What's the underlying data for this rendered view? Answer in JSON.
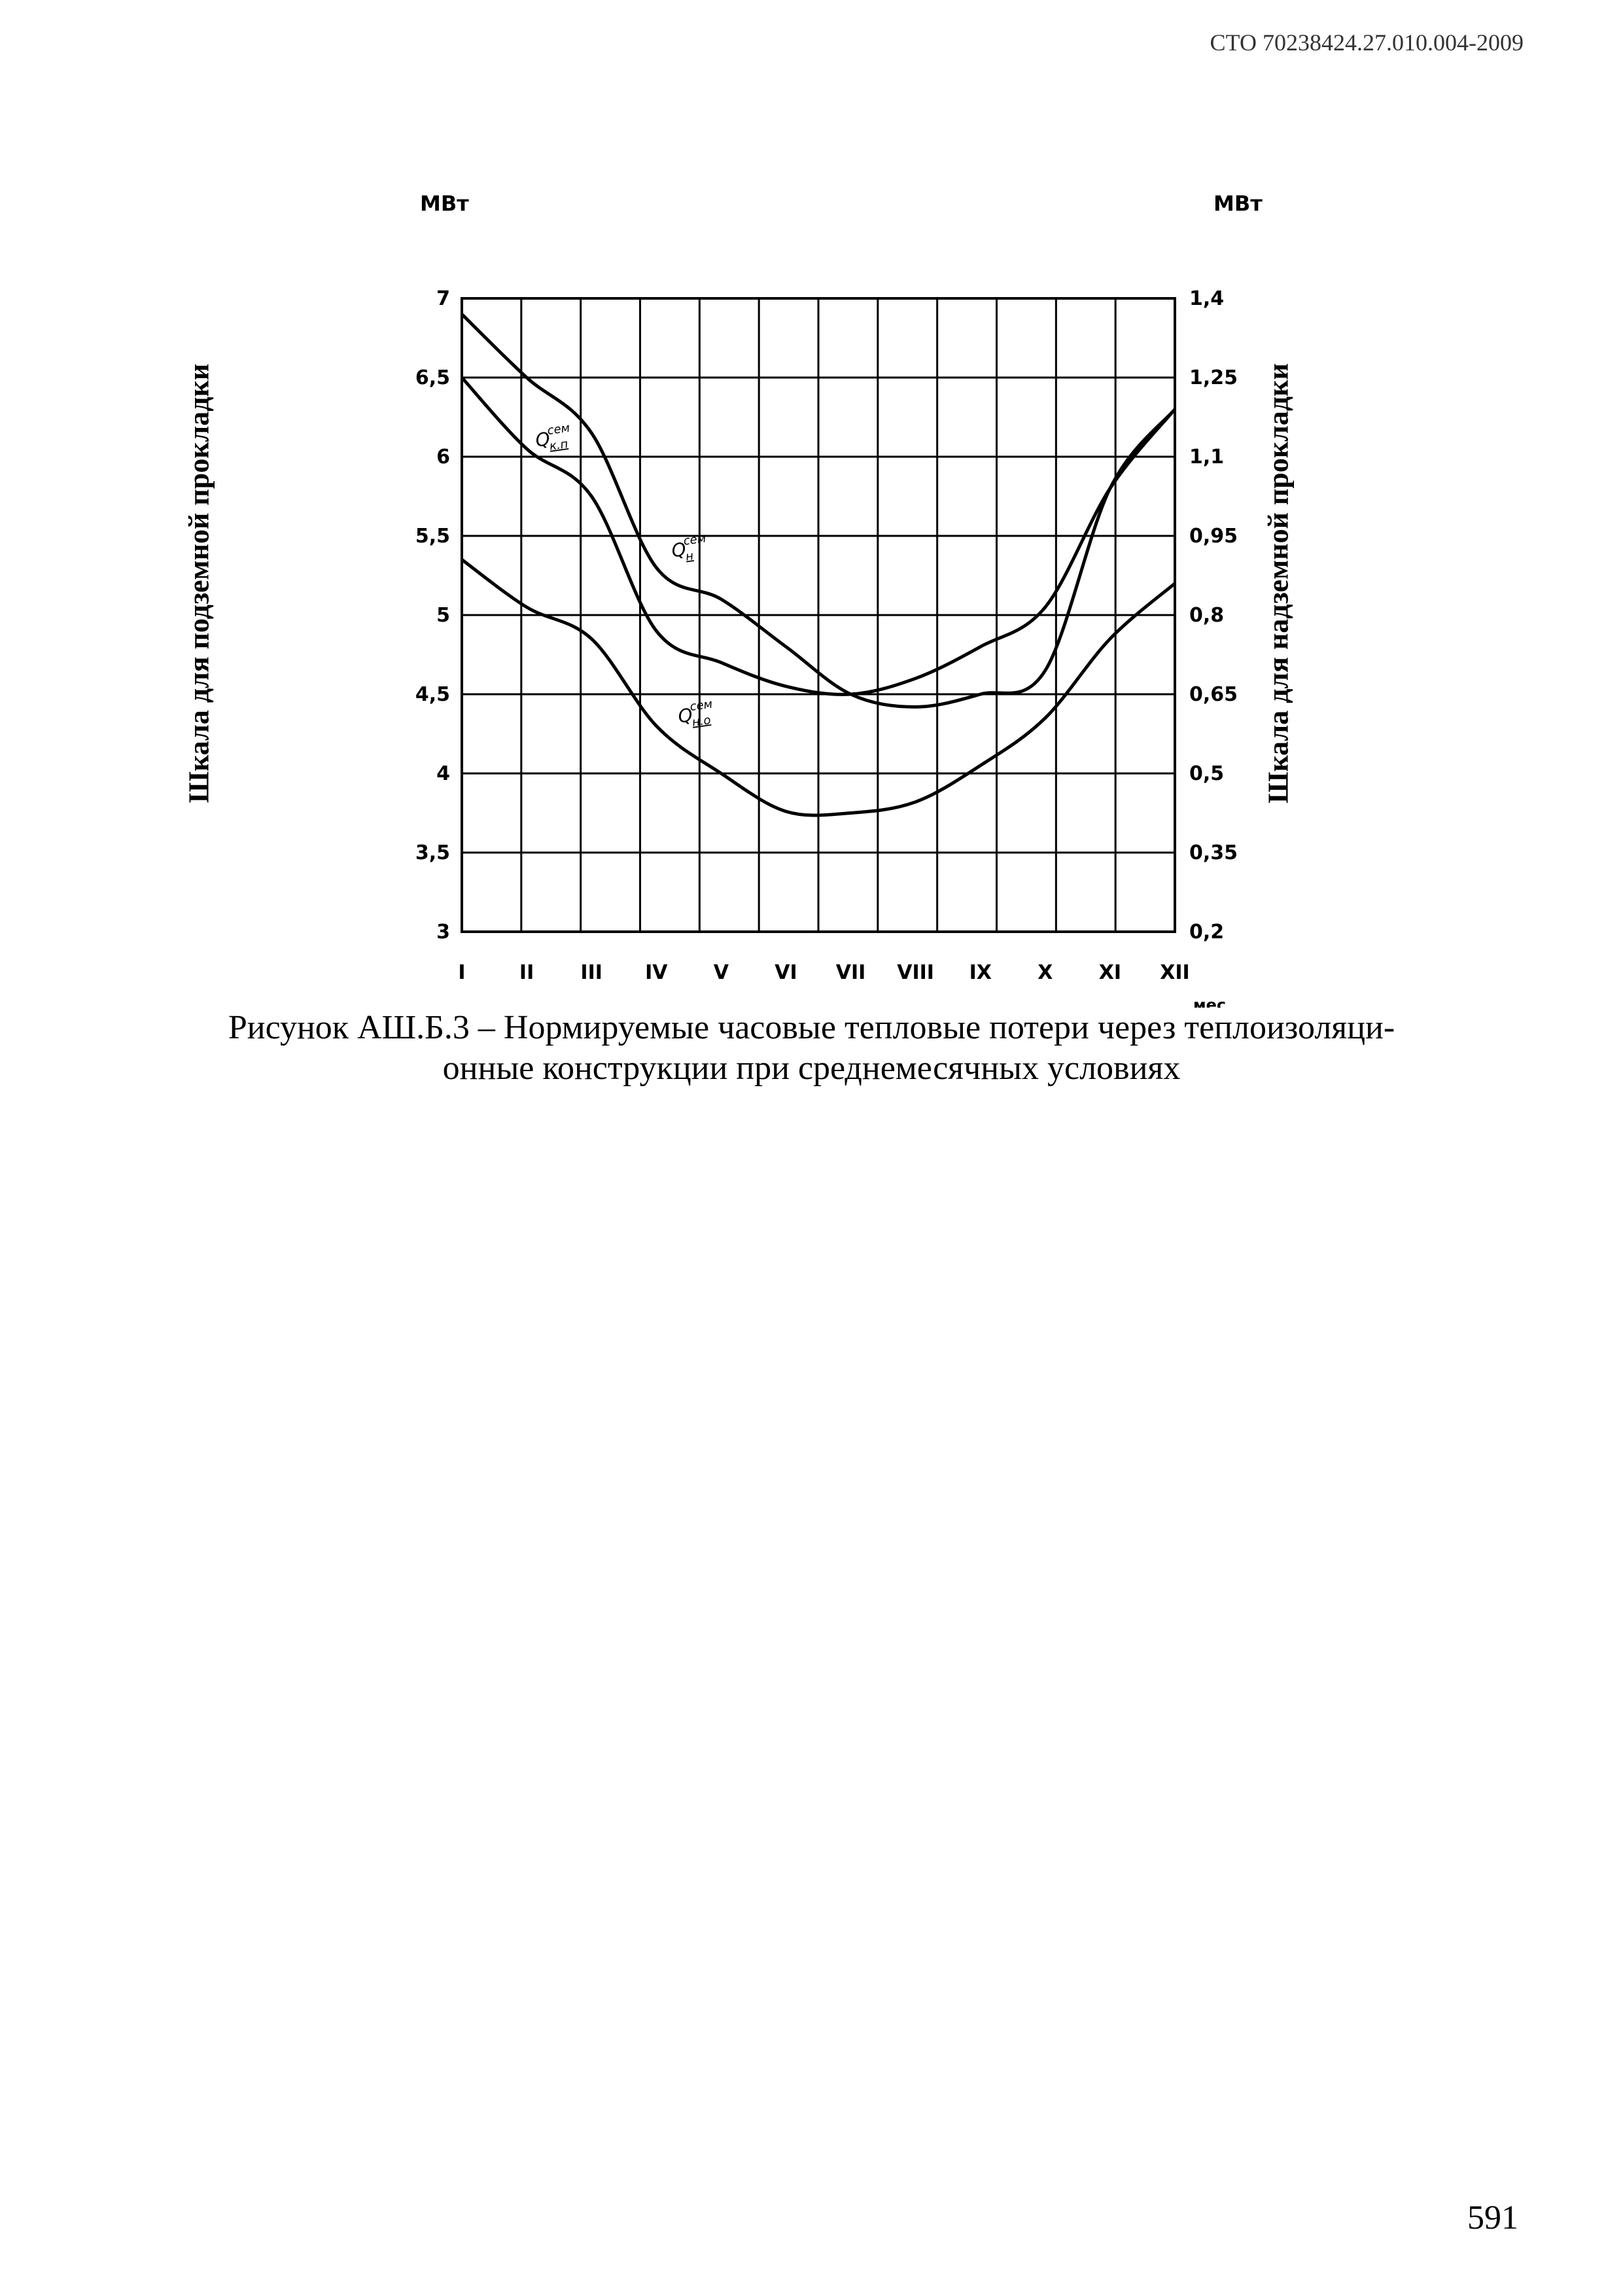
{
  "header": {
    "doc_code": "СТО 70238424.27.010.004-2009"
  },
  "chart_data": {
    "type": "line",
    "x_categories": [
      "I",
      "II",
      "III",
      "IV",
      "V",
      "VI",
      "VII",
      "VIII",
      "IX",
      "X",
      "XI",
      "XII"
    ],
    "x_unit": "мес",
    "left_axis": {
      "unit": "МВт",
      "label": "Шкала для подземной прокладки",
      "ylim": [
        3,
        7
      ],
      "ticks": [
        "3",
        "3,5",
        "4",
        "4,5",
        "5",
        "5,5",
        "6",
        "6,5",
        "7"
      ]
    },
    "right_axis": {
      "unit": "МВт",
      "label": "Шкала для надземной прокладки",
      "ylim": [
        0.2,
        1.4
      ],
      "ticks": [
        "0,2",
        "0,35",
        "0,5",
        "0,65",
        "0,8",
        "0,95",
        "1,1",
        "1,25",
        "1,4"
      ]
    },
    "grid": true,
    "series": [
      {
        "name": "Q кп сем",
        "label_main": "Q",
        "label_sup": "сем",
        "label_sub": "к.п",
        "axis": "left",
        "values": [
          6.5,
          6.05,
          5.75,
          4.9,
          4.7,
          4.55,
          4.5,
          4.6,
          4.8,
          5.05,
          5.8,
          6.3
        ]
      },
      {
        "name": "Q н сем",
        "label_main": "Q",
        "label_sup": "сем",
        "label_sub": "н",
        "axis": "left",
        "values": [
          6.9,
          6.5,
          6.15,
          5.3,
          5.1,
          4.8,
          4.5,
          4.42,
          4.5,
          4.65,
          5.8,
          6.3
        ]
      },
      {
        "name": "Q н.о сем",
        "label_main": "Q",
        "label_sup": "сем",
        "label_sub": "н.о",
        "axis": "left",
        "values": [
          5.35,
          5.05,
          4.85,
          4.3,
          4.0,
          3.76,
          3.75,
          3.82,
          4.05,
          4.35,
          4.85,
          5.2
        ]
      }
    ]
  },
  "caption": {
    "line1": "Рисунок АШ.Б.3 – Нормируемые часовые тепловые потери через теплоизоляци-",
    "line2": "онные конструкции при среднемесячных условиях"
  },
  "page_number": "591"
}
